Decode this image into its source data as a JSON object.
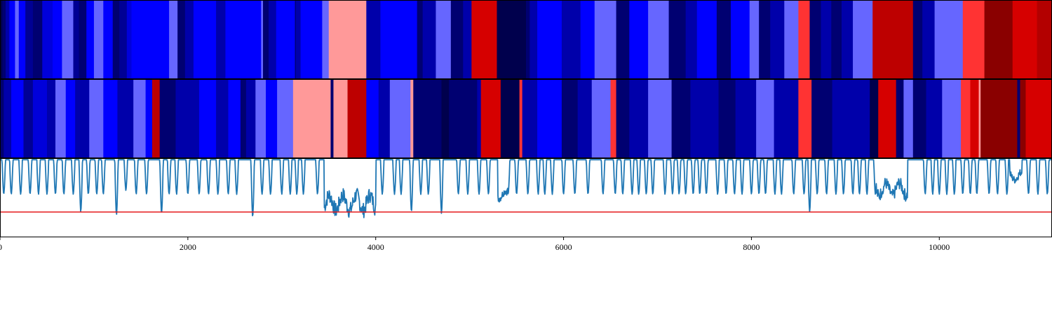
{
  "chart_data": [
    {
      "type": "heatmap",
      "x_range": [
        0,
        11200
      ],
      "colormap": "seismic",
      "segments": [
        [
          0,
          25,
          0.0
        ],
        [
          25,
          60,
          0.05
        ],
        [
          60,
          100,
          0.13
        ],
        [
          100,
          160,
          0.25
        ],
        [
          160,
          200,
          0.35
        ],
        [
          200,
          270,
          0.25
        ],
        [
          270,
          350,
          0.1
        ],
        [
          350,
          450,
          0.05
        ],
        [
          450,
          560,
          0.2
        ],
        [
          560,
          660,
          0.25
        ],
        [
          660,
          780,
          0.35
        ],
        [
          780,
          840,
          0.1
        ],
        [
          840,
          920,
          0.05
        ],
        [
          920,
          1000,
          0.25
        ],
        [
          1000,
          1100,
          0.35
        ],
        [
          1100,
          1200,
          0.25
        ],
        [
          1200,
          1270,
          0.05
        ],
        [
          1270,
          1350,
          0.1
        ],
        [
          1350,
          1400,
          0.2
        ],
        [
          1400,
          1800,
          0.25
        ],
        [
          1800,
          1890,
          0.35
        ],
        [
          1890,
          1970,
          0.05
        ],
        [
          1970,
          2060,
          0.13
        ],
        [
          2060,
          2300,
          0.25
        ],
        [
          2300,
          2400,
          0.13
        ],
        [
          2400,
          2780,
          0.25
        ],
        [
          2780,
          2800,
          0.35
        ],
        [
          2800,
          2860,
          0.05
        ],
        [
          2860,
          2940,
          0.13
        ],
        [
          2940,
          3140,
          0.25
        ],
        [
          3140,
          3150,
          0.05
        ],
        [
          3150,
          3200,
          0.13
        ],
        [
          3200,
          3430,
          0.25
        ],
        [
          3430,
          3500,
          0.35
        ],
        [
          3500,
          3900,
          0.6
        ],
        [
          3900,
          4050,
          0.13
        ],
        [
          4050,
          4440,
          0.25
        ],
        [
          4440,
          4500,
          0.05
        ],
        [
          4500,
          4640,
          0.13
        ],
        [
          4640,
          4800,
          0.35
        ],
        [
          4800,
          4930,
          0.05
        ],
        [
          4930,
          5020,
          0.13
        ],
        [
          5020,
          5290,
          0.83
        ],
        [
          5290,
          5600,
          0.0
        ],
        [
          5600,
          5640,
          0.05
        ],
        [
          5640,
          5720,
          0.13
        ],
        [
          5720,
          5980,
          0.25
        ],
        [
          5980,
          6180,
          0.13
        ],
        [
          6180,
          6330,
          0.25
        ],
        [
          6330,
          6560,
          0.35
        ],
        [
          6560,
          6700,
          0.05
        ],
        [
          6700,
          6900,
          0.25
        ],
        [
          6900,
          7120,
          0.35
        ],
        [
          7120,
          7300,
          0.05
        ],
        [
          7300,
          7420,
          0.13
        ],
        [
          7420,
          7630,
          0.25
        ],
        [
          7630,
          7780,
          0.05
        ],
        [
          7780,
          7980,
          0.25
        ],
        [
          7980,
          8080,
          0.35
        ],
        [
          8080,
          8200,
          0.05
        ],
        [
          8200,
          8350,
          0.13
        ],
        [
          8350,
          8500,
          0.35
        ],
        [
          8500,
          8620,
          0.7
        ],
        [
          8620,
          8740,
          0.05
        ],
        [
          8740,
          8850,
          0.13
        ],
        [
          8850,
          8960,
          0.05
        ],
        [
          8960,
          9080,
          0.13
        ],
        [
          9080,
          9290,
          0.35
        ],
        [
          9290,
          9720,
          0.88
        ],
        [
          9720,
          9820,
          0.05
        ],
        [
          9820,
          9950,
          0.13
        ],
        [
          9950,
          10250,
          0.35
        ],
        [
          10250,
          10480,
          0.7
        ],
        [
          10480,
          10780,
          0.98
        ],
        [
          10780,
          11040,
          0.83
        ],
        [
          11040,
          11200,
          0.9
        ]
      ]
    },
    {
      "type": "heatmap",
      "x_range": [
        0,
        11200
      ],
      "colormap": "seismic",
      "segments": [
        [
          0,
          40,
          0.05
        ],
        [
          40,
          120,
          0.13
        ],
        [
          120,
          250,
          0.25
        ],
        [
          250,
          350,
          0.1
        ],
        [
          350,
          500,
          0.2
        ],
        [
          500,
          590,
          0.13
        ],
        [
          590,
          700,
          0.35
        ],
        [
          700,
          800,
          0.25
        ],
        [
          800,
          950,
          0.13
        ],
        [
          950,
          1100,
          0.35
        ],
        [
          1100,
          1250,
          0.25
        ],
        [
          1250,
          1420,
          0.13
        ],
        [
          1420,
          1550,
          0.35
        ],
        [
          1550,
          1620,
          0.25
        ],
        [
          1620,
          1700,
          0.88
        ],
        [
          1700,
          1870,
          0.05
        ],
        [
          1870,
          2120,
          0.13
        ],
        [
          2120,
          2300,
          0.25
        ],
        [
          2300,
          2430,
          0.13
        ],
        [
          2430,
          2560,
          0.25
        ],
        [
          2560,
          2620,
          0.05
        ],
        [
          2620,
          2720,
          0.13
        ],
        [
          2720,
          2830,
          0.35
        ],
        [
          2830,
          2950,
          0.25
        ],
        [
          2950,
          3120,
          0.35
        ],
        [
          3120,
          3520,
          0.6
        ],
        [
          3520,
          3550,
          0.05
        ],
        [
          3550,
          3700,
          0.6
        ],
        [
          3700,
          3900,
          0.88
        ],
        [
          3900,
          4030,
          0.25
        ],
        [
          4030,
          4150,
          0.13
        ],
        [
          4150,
          4370,
          0.35
        ],
        [
          4370,
          4400,
          0.6
        ],
        [
          4400,
          4700,
          0.05
        ],
        [
          4700,
          4780,
          0.0
        ],
        [
          4780,
          5080,
          0.05
        ],
        [
          5080,
          5120,
          0.13
        ],
        [
          5120,
          5330,
          0.83
        ],
        [
          5330,
          5530,
          0.0
        ],
        [
          5530,
          5560,
          0.7
        ],
        [
          5560,
          5720,
          0.13
        ],
        [
          5720,
          5980,
          0.25
        ],
        [
          5980,
          6150,
          0.05
        ],
        [
          6150,
          6300,
          0.13
        ],
        [
          6300,
          6500,
          0.35
        ],
        [
          6500,
          6560,
          0.7
        ],
        [
          6560,
          6700,
          0.05
        ],
        [
          6700,
          6900,
          0.13
        ],
        [
          6900,
          7150,
          0.35
        ],
        [
          7150,
          7350,
          0.05
        ],
        [
          7350,
          7650,
          0.13
        ],
        [
          7650,
          7830,
          0.05
        ],
        [
          7830,
          8050,
          0.13
        ],
        [
          8050,
          8240,
          0.35
        ],
        [
          8240,
          8500,
          0.13
        ],
        [
          8500,
          8640,
          0.7
        ],
        [
          8640,
          8860,
          0.05
        ],
        [
          8860,
          9260,
          0.13
        ],
        [
          9260,
          9350,
          0.0
        ],
        [
          9350,
          9540,
          0.83
        ],
        [
          9540,
          9620,
          0.05
        ],
        [
          9620,
          9720,
          0.35
        ],
        [
          9720,
          9860,
          0.05
        ],
        [
          9860,
          10030,
          0.13
        ],
        [
          10030,
          10230,
          0.35
        ],
        [
          10230,
          10330,
          0.7
        ],
        [
          10330,
          10420,
          0.83
        ],
        [
          10420,
          10440,
          0.6
        ],
        [
          10440,
          10830,
          0.98
        ],
        [
          10830,
          10860,
          0.05
        ],
        [
          10860,
          10920,
          0.98
        ],
        [
          10920,
          11200,
          0.83
        ]
      ]
    },
    {
      "type": "line",
      "color": "#1f77b4",
      "threshold": {
        "value": -0.68,
        "color": "#e41a1c"
      },
      "x_range": [
        0,
        11200
      ],
      "y_range": [
        -1.0,
        0.02
      ],
      "xticks": [
        "0",
        "2000",
        "4000",
        "6000",
        "8000",
        "10000"
      ],
      "xtick_values": [
        0,
        2000,
        4000,
        6000,
        8000,
        10000
      ],
      "baseline": 0.0,
      "dips": [
        [
          40,
          -0.45
        ],
        [
          120,
          -0.45
        ],
        [
          220,
          -0.45
        ],
        [
          320,
          -0.45
        ],
        [
          410,
          -0.45
        ],
        [
          500,
          -0.45
        ],
        [
          590,
          -0.45
        ],
        [
          680,
          -0.45
        ],
        [
          780,
          -0.45
        ],
        [
          860,
          -0.68
        ],
        [
          940,
          -0.45
        ],
        [
          1030,
          -0.45
        ],
        [
          1100,
          -0.45
        ],
        [
          1240,
          -0.72
        ],
        [
          1340,
          -0.4
        ],
        [
          1450,
          -0.45
        ],
        [
          1560,
          -0.45
        ],
        [
          1720,
          -0.7
        ],
        [
          1800,
          -0.45
        ],
        [
          1880,
          -0.45
        ],
        [
          2000,
          -0.45
        ],
        [
          2120,
          -0.45
        ],
        [
          2220,
          -0.45
        ],
        [
          2320,
          -0.45
        ],
        [
          2430,
          -0.45
        ],
        [
          2520,
          -0.45
        ],
        [
          2690,
          -0.75
        ],
        [
          2790,
          -0.45
        ],
        [
          2880,
          -0.45
        ],
        [
          3000,
          -0.45
        ],
        [
          3090,
          -0.45
        ],
        [
          3160,
          -0.45
        ],
        [
          3230,
          -0.45
        ],
        [
          3380,
          -0.45
        ],
        [
          3540,
          -0.45
        ],
        [
          3640,
          -0.45
        ],
        [
          3730,
          -0.55
        ],
        [
          3840,
          -0.45
        ],
        [
          4070,
          -0.45
        ],
        [
          4200,
          -0.45
        ],
        [
          4270,
          -0.45
        ],
        [
          4380,
          -0.68
        ],
        [
          4480,
          -0.45
        ],
        [
          4560,
          -0.45
        ],
        [
          4700,
          -0.7
        ],
        [
          4880,
          -0.45
        ],
        [
          4980,
          -0.45
        ],
        [
          5100,
          -0.45
        ],
        [
          5200,
          -0.45
        ],
        [
          5410,
          -0.45
        ],
        [
          5500,
          -0.45
        ],
        [
          5620,
          -0.45
        ],
        [
          5730,
          -0.45
        ],
        [
          5800,
          -0.45
        ],
        [
          5880,
          -0.45
        ],
        [
          6000,
          -0.45
        ],
        [
          6120,
          -0.45
        ],
        [
          6260,
          -0.45
        ],
        [
          6420,
          -0.45
        ],
        [
          6550,
          -0.45
        ],
        [
          6630,
          -0.45
        ],
        [
          6730,
          -0.45
        ],
        [
          6800,
          -0.45
        ],
        [
          6880,
          -0.45
        ],
        [
          6950,
          -0.45
        ],
        [
          7080,
          -0.45
        ],
        [
          7160,
          -0.45
        ],
        [
          7230,
          -0.45
        ],
        [
          7300,
          -0.45
        ],
        [
          7380,
          -0.45
        ],
        [
          7450,
          -0.45
        ],
        [
          7520,
          -0.45
        ],
        [
          7640,
          -0.45
        ],
        [
          7730,
          -0.45
        ],
        [
          7820,
          -0.45
        ],
        [
          7900,
          -0.45
        ],
        [
          8000,
          -0.45
        ],
        [
          8080,
          -0.45
        ],
        [
          8150,
          -0.45
        ],
        [
          8250,
          -0.45
        ],
        [
          8320,
          -0.45
        ],
        [
          8450,
          -0.45
        ],
        [
          8560,
          -0.45
        ],
        [
          8620,
          -0.68
        ],
        [
          8700,
          -0.45
        ],
        [
          8800,
          -0.45
        ],
        [
          8900,
          -0.45
        ],
        [
          8980,
          -0.45
        ],
        [
          9080,
          -0.45
        ],
        [
          9150,
          -0.45
        ],
        [
          9230,
          -0.45
        ],
        [
          9320,
          -0.45
        ],
        [
          9400,
          -0.45
        ],
        [
          9500,
          -0.45
        ],
        [
          9850,
          -0.45
        ],
        [
          9930,
          -0.45
        ],
        [
          10000,
          -0.45
        ],
        [
          10080,
          -0.45
        ],
        [
          10160,
          -0.45
        ],
        [
          10250,
          -0.45
        ],
        [
          10330,
          -0.45
        ],
        [
          10400,
          -0.45
        ],
        [
          10530,
          -0.45
        ],
        [
          10620,
          -0.45
        ],
        [
          10720,
          -0.45
        ],
        [
          10950,
          -0.45
        ],
        [
          11050,
          -0.45
        ],
        [
          11150,
          -0.45
        ]
      ],
      "troughs": [
        {
          "from": 3450,
          "to": 4000,
          "level": -0.8,
          "wobble": 0.1
        },
        {
          "from": 5300,
          "to": 5400,
          "level": -0.65,
          "wobble": 0.05
        },
        {
          "from": 9330,
          "to": 9660,
          "level": -0.55,
          "wobble": 0.08
        },
        {
          "from": 10750,
          "to": 10880,
          "level": -0.3,
          "wobble": 0.05
        }
      ]
    }
  ]
}
